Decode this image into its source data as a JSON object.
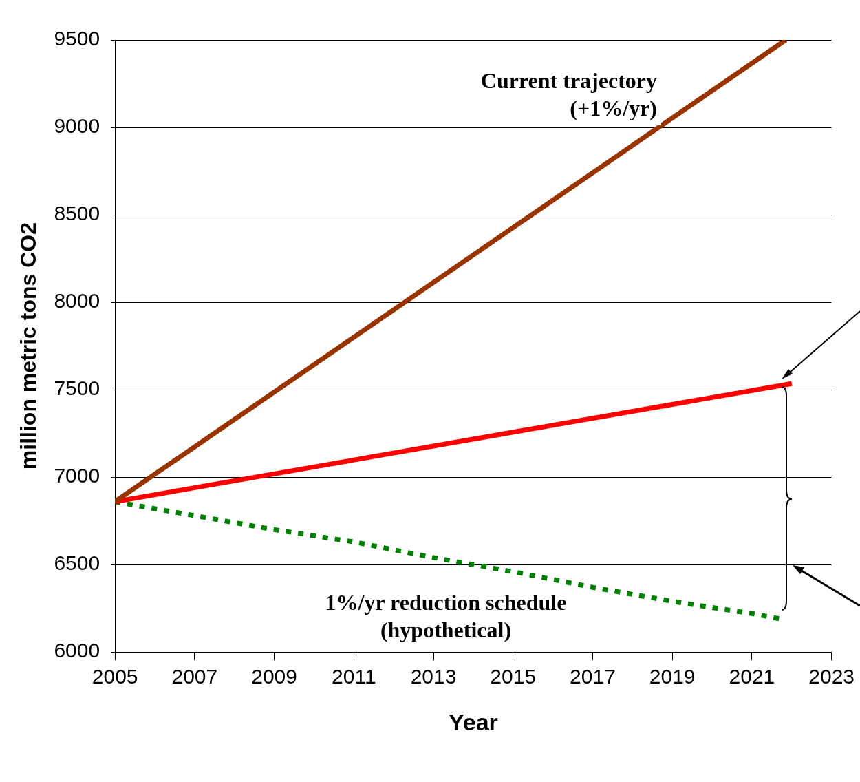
{
  "chart_data": {
    "type": "line",
    "xlabel": "Year",
    "ylabel": "million metric tons CO2",
    "xlim": [
      2005,
      2023
    ],
    "xticks": [
      2005,
      2007,
      2009,
      2011,
      2013,
      2015,
      2017,
      2019,
      2021,
      2023
    ],
    "ylim": [
      6000,
      9500
    ],
    "yticks": [
      6000,
      6500,
      7000,
      7500,
      8000,
      8500,
      9000,
      9500
    ],
    "grid": "y",
    "legend": false,
    "marker": "none",
    "series": [
      {
        "color": "#993300",
        "line_style": "solid",
        "x": [
          2005,
          2021.85
        ],
        "values": [
          6860,
          9500
        ]
      },
      {
        "color": "#ff0000",
        "line_style": "solid",
        "x": [
          2005,
          2022
        ],
        "values": [
          6860,
          7535
        ]
      },
      {
        "color": "#008000",
        "line_style": "dotted",
        "x": [
          2005,
          2007,
          2009,
          2011,
          2013,
          2015,
          2017,
          2019,
          2021,
          2021.7
        ],
        "values": [
          6860,
          6780,
          6700,
          6630,
          6540,
          6460,
          6370,
          6290,
          6220,
          6190
        ]
      }
    ],
    "annotations": [
      "Current trajectory\n(+1%/yr)",
      "1%/yr reduction schedule\n(hypothetical)"
    ]
  }
}
